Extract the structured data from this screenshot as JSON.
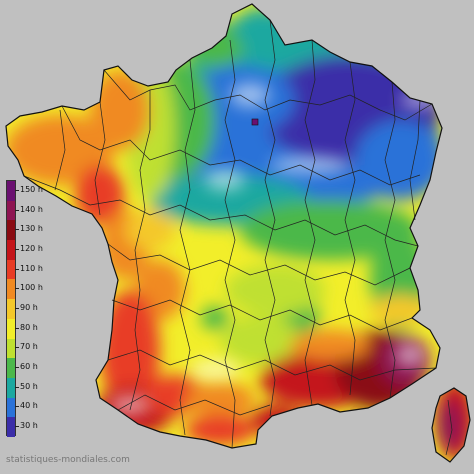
{
  "map": {
    "legend": {
      "labels": [
        "150 h",
        "140 h",
        "130 h",
        "120 h",
        "110 h",
        "100 h",
        "90 h",
        "80 h",
        "70 h",
        "60 h",
        "50 h",
        "40 h",
        "30 h"
      ],
      "colors": [
        "#6a1070",
        "#8e1452",
        "#8a0b12",
        "#c4141a",
        "#e83c25",
        "#f08a22",
        "#f4c82a",
        "#f2ee2a",
        "#bfe030",
        "#4bb84a",
        "#1ba8a0",
        "#2a72d8",
        "#3b2ea8"
      ]
    },
    "watermark": "statistiques-mondiales.com"
  }
}
